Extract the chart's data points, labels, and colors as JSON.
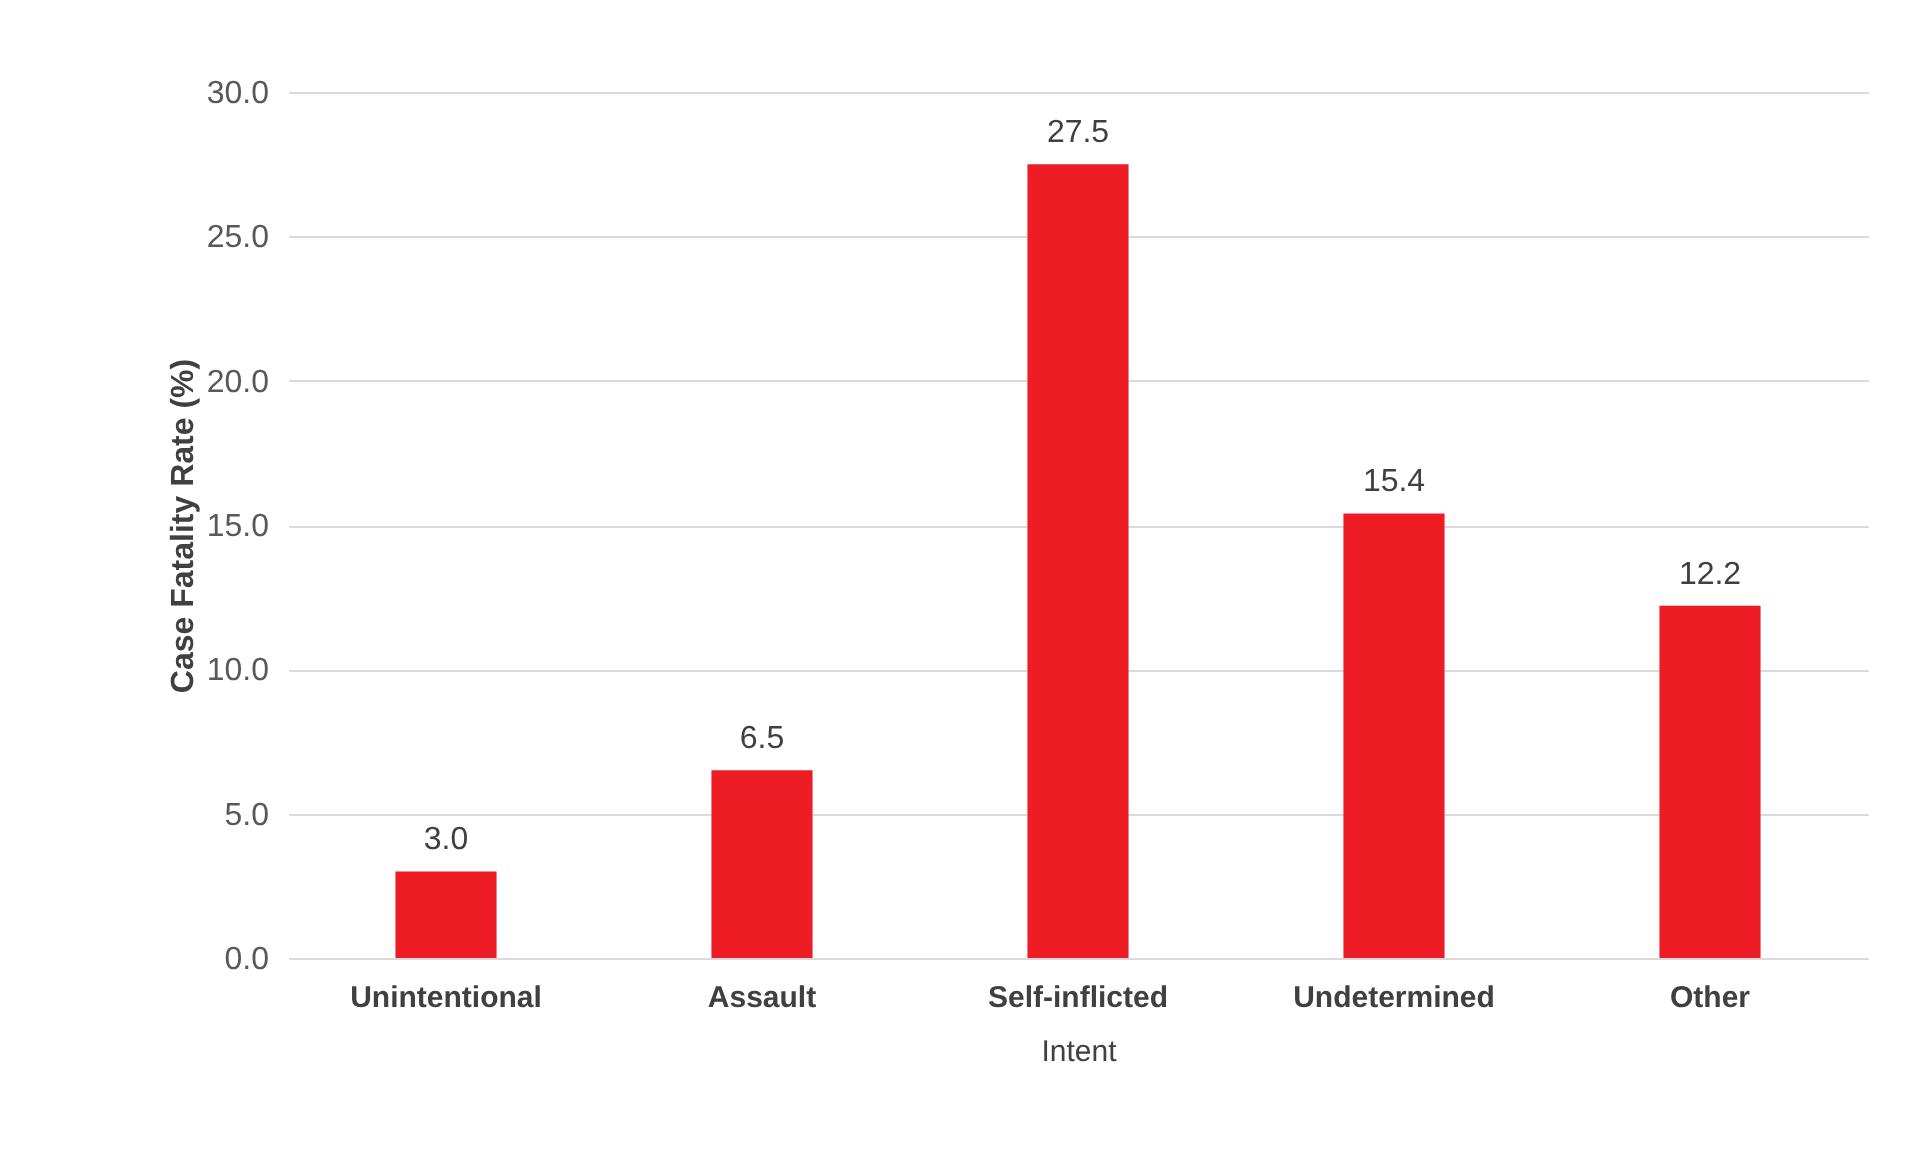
{
  "chart_data": {
    "type": "bar",
    "xlabel": "Intent",
    "ylabel": "Case Fatality Rate (%)",
    "categories": [
      "Unintentional",
      "Assault",
      "Self-inflicted",
      "Undetermined",
      "Other"
    ],
    "values": [
      3.0,
      6.5,
      27.5,
      15.4,
      12.2
    ],
    "color": "#ee1c25",
    "ylim": [
      0,
      30
    ],
    "yticks": [
      {
        "value": 0,
        "label": "0.0"
      },
      {
        "value": 5,
        "label": "5.0"
      },
      {
        "value": 10,
        "label": "10.0"
      },
      {
        "value": 15,
        "label": "15.0"
      },
      {
        "value": 20,
        "label": "20.0"
      },
      {
        "value": 25,
        "label": "25.0"
      },
      {
        "value": 30,
        "label": "30.0"
      }
    ],
    "value_labels": [
      "3.0",
      "6.5",
      "27.5",
      "15.4",
      "12.2"
    ],
    "grid": "y"
  }
}
